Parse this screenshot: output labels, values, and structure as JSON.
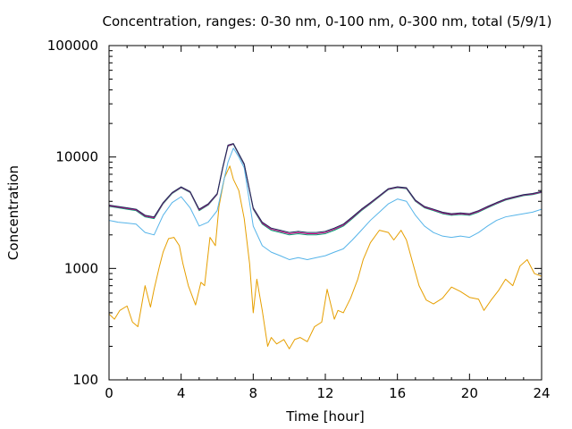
{
  "chart_data": {
    "type": "line",
    "title": "Concentration, ranges: 0-30 nm, 0-100 nm, 0-300 nm, total (5/9/1)",
    "xlabel": "Time [hour]",
    "ylabel": "Concentration",
    "xlim": [
      0,
      24
    ],
    "ylim": [
      100,
      100000
    ],
    "yscale": "log",
    "grid": false,
    "legend": "none",
    "x_ticks": [
      0,
      4,
      8,
      12,
      16,
      20,
      24
    ],
    "x_tick_labels": [
      "0",
      "4",
      "8",
      "12",
      "16",
      "20",
      "24"
    ],
    "y_ticks": [
      100,
      1000,
      10000,
      100000
    ],
    "y_tick_labels": [
      "100",
      "1000",
      "10000",
      "100000"
    ],
    "series": [
      {
        "color": "#e69f00",
        "x": [
          0,
          0.3,
          0.6,
          1.0,
          1.3,
          1.6,
          2.0,
          2.3,
          2.5,
          2.8,
          3.0,
          3.3,
          3.6,
          3.9,
          4.1,
          4.4,
          4.8,
          5.1,
          5.3,
          5.6,
          5.9,
          6.1,
          6.4,
          6.7,
          6.9,
          7.2,
          7.5,
          7.8,
          8.0,
          8.2,
          8.5,
          8.8,
          9.0,
          9.3,
          9.7,
          10.0,
          10.3,
          10.6,
          11.0,
          11.4,
          11.8,
          12.1,
          12.5,
          12.7,
          13.0,
          13.4,
          13.8,
          14.1,
          14.5,
          15.0,
          15.5,
          15.8,
          16.2,
          16.5,
          16.8,
          17.2,
          17.6,
          18.0,
          18.5,
          19.0,
          19.5,
          20.0,
          20.5,
          20.8,
          21.2,
          21.6,
          22.0,
          22.4,
          22.8,
          23.2,
          23.6,
          24.0
        ],
        "y": [
          390,
          350,
          420,
          460,
          330,
          300,
          700,
          450,
          650,
          1050,
          1400,
          1850,
          1900,
          1600,
          1100,
          700,
          470,
          750,
          700,
          1900,
          1600,
          3600,
          6500,
          8300,
          6300,
          5000,
          2800,
          1100,
          400,
          800,
          420,
          200,
          240,
          210,
          230,
          190,
          230,
          240,
          220,
          300,
          330,
          650,
          350,
          420,
          400,
          540,
          800,
          1200,
          1700,
          2200,
          2100,
          1800,
          2200,
          1800,
          1200,
          700,
          520,
          480,
          540,
          680,
          620,
          550,
          530,
          420,
          520,
          630,
          800,
          700,
          1050,
          1200,
          900,
          850
        ]
      },
      {
        "color": "#56b4e9",
        "x": [
          0,
          0.5,
          1.0,
          1.5,
          2.0,
          2.5,
          3.0,
          3.5,
          4.0,
          4.5,
          5.0,
          5.5,
          6.0,
          6.3,
          6.6,
          6.9,
          7.2,
          7.5,
          8.0,
          8.5,
          9.0,
          9.5,
          10.0,
          10.5,
          11.0,
          11.5,
          12.0,
          12.5,
          13.0,
          13.5,
          14.0,
          14.5,
          15.0,
          15.5,
          16.0,
          16.5,
          17.0,
          17.5,
          18.0,
          18.5,
          19.0,
          19.5,
          20.0,
          20.5,
          21.0,
          21.5,
          22.0,
          22.5,
          23.0,
          23.5,
          24.0
        ],
        "y": [
          2700,
          2600,
          2550,
          2500,
          2100,
          2000,
          3000,
          3900,
          4400,
          3500,
          2400,
          2600,
          3300,
          5500,
          9000,
          12000,
          10000,
          8000,
          2400,
          1600,
          1400,
          1300,
          1200,
          1250,
          1200,
          1250,
          1300,
          1400,
          1500,
          1800,
          2200,
          2700,
          3200,
          3800,
          4200,
          4000,
          3000,
          2400,
          2100,
          1950,
          1900,
          1950,
          1900,
          2100,
          2400,
          2700,
          2900,
          3000,
          3100,
          3200,
          3400
        ]
      },
      {
        "color": "#009e73",
        "x": [
          0,
          0.5,
          1.0,
          1.5,
          2.0,
          2.5,
          3.0,
          3.5,
          4.0,
          4.5,
          5.0,
          5.5,
          6.0,
          6.3,
          6.6,
          6.9,
          7.2,
          7.5,
          8.0,
          8.5,
          9.0,
          9.5,
          10.0,
          10.5,
          11.0,
          11.5,
          12.0,
          12.5,
          13.0,
          13.5,
          14.0,
          14.5,
          15.0,
          15.5,
          16.0,
          16.5,
          17.0,
          17.5,
          18.0,
          18.5,
          19.0,
          19.5,
          20.0,
          20.5,
          21.0,
          21.5,
          22.0,
          22.5,
          23.0,
          23.5,
          24.0
        ],
        "y": [
          3600,
          3500,
          3400,
          3300,
          2900,
          2800,
          3800,
          4700,
          5300,
          4800,
          3300,
          3700,
          4600,
          7800,
          12500,
          13000,
          10500,
          8500,
          3400,
          2500,
          2200,
          2100,
          2000,
          2050,
          2000,
          2000,
          2050,
          2200,
          2400,
          2800,
          3300,
          3800,
          4400,
          5100,
          5300,
          5200,
          4000,
          3500,
          3300,
          3100,
          3000,
          3050,
          3000,
          3200,
          3500,
          3800,
          4100,
          4300,
          4500,
          4600,
          4800
        ]
      },
      {
        "color": "#cc0080",
        "x": [
          0,
          0.5,
          1.0,
          1.5,
          2.0,
          2.5,
          3.0,
          3.5,
          4.0,
          4.5,
          5.0,
          5.5,
          6.0,
          6.3,
          6.6,
          6.9,
          7.2,
          7.5,
          8.0,
          8.5,
          9.0,
          9.5,
          10.0,
          10.5,
          11.0,
          11.5,
          12.0,
          12.5,
          13.0,
          13.5,
          14.0,
          14.5,
          15.0,
          15.5,
          16.0,
          16.5,
          17.0,
          17.5,
          18.0,
          18.5,
          19.0,
          19.5,
          20.0,
          20.5,
          21.0,
          21.5,
          22.0,
          22.5,
          23.0,
          23.5,
          24.0
        ],
        "y": [
          3650,
          3550,
          3450,
          3350,
          2950,
          2850,
          3850,
          4750,
          5350,
          4850,
          3350,
          3750,
          4650,
          7900,
          12600,
          13100,
          10600,
          8600,
          3450,
          2550,
          2250,
          2150,
          2050,
          2100,
          2050,
          2050,
          2100,
          2250,
          2450,
          2850,
          3350,
          3850,
          4450,
          5150,
          5350,
          5250,
          4050,
          3550,
          3350,
          3150,
          3050,
          3100,
          3050,
          3250,
          3550,
          3850,
          4150,
          4350,
          4550,
          4650,
          4850
        ]
      },
      {
        "color": "#1a2e5a",
        "x": [
          0,
          0.5,
          1.0,
          1.5,
          2.0,
          2.5,
          3.0,
          3.5,
          4.0,
          4.5,
          5.0,
          5.5,
          6.0,
          6.3,
          6.6,
          6.9,
          7.2,
          7.5,
          8.0,
          8.5,
          9.0,
          9.5,
          10.0,
          10.5,
          11.0,
          11.5,
          12.0,
          12.5,
          13.0,
          13.5,
          14.0,
          14.5,
          15.0,
          15.5,
          16.0,
          16.5,
          17.0,
          17.5,
          18.0,
          18.5,
          19.0,
          19.5,
          20.0,
          20.5,
          21.0,
          21.5,
          22.0,
          22.5,
          23.0,
          23.5,
          24.0
        ],
        "y": [
          3700,
          3600,
          3500,
          3400,
          3000,
          2900,
          3900,
          4800,
          5400,
          4900,
          3400,
          3800,
          4700,
          8000,
          12800,
          13200,
          10700,
          8700,
          3500,
          2600,
          2300,
          2200,
          2100,
          2150,
          2100,
          2100,
          2150,
          2300,
          2500,
          2900,
          3400,
          3900,
          4500,
          5200,
          5400,
          5300,
          4100,
          3600,
          3400,
          3200,
          3100,
          3150,
          3100,
          3300,
          3600,
          3900,
          4200,
          4400,
          4600,
          4700,
          4900
        ]
      }
    ]
  }
}
